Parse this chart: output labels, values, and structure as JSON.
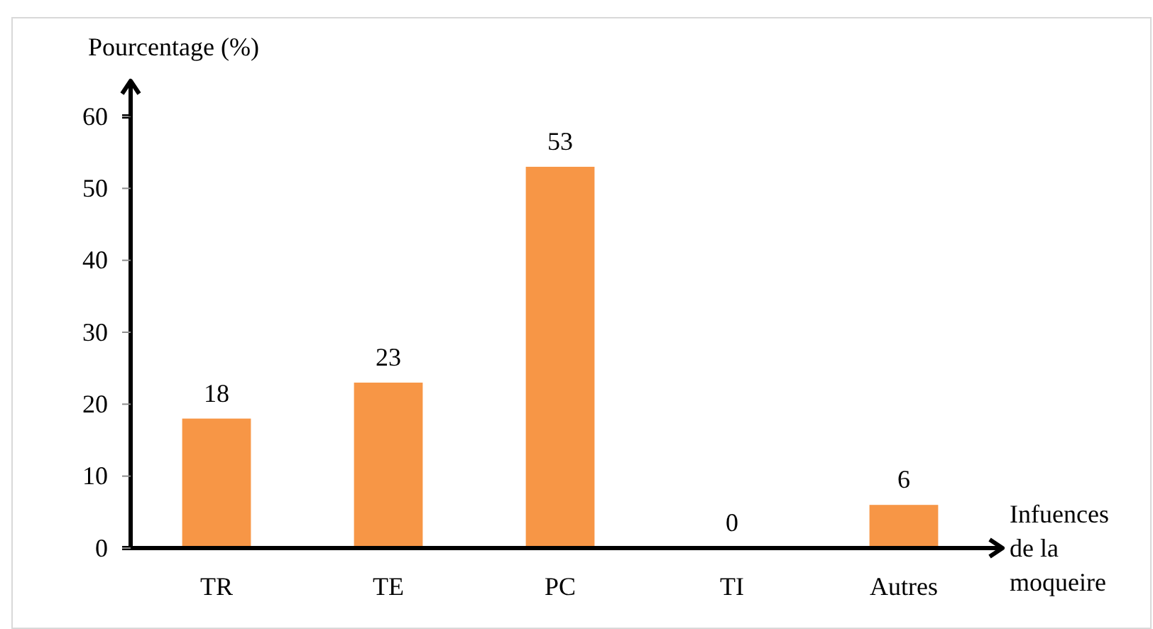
{
  "chart_data": {
    "type": "bar",
    "ylabel": "Pourcentage (%)",
    "xlabel": "Infuences de la moqueire",
    "categories": [
      "TR",
      "TE",
      "PC",
      "TI",
      "Autres"
    ],
    "values": [
      18,
      23,
      53,
      0,
      6
    ],
    "color": "#f79646",
    "ylim": [
      0,
      60
    ],
    "yticks": [
      0,
      10,
      20,
      30,
      40,
      50,
      60
    ],
    "data_labels": true
  }
}
